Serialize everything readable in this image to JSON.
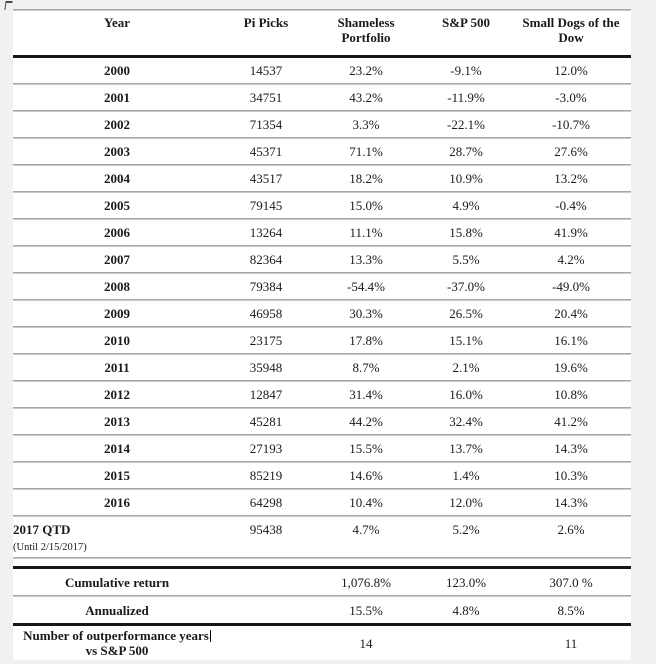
{
  "page": {
    "background": "#eff1f3",
    "table_background": "#ffffff"
  },
  "table": {
    "columns": [
      "Year",
      "Pi Picks",
      "Shameless Portfolio",
      "S&P 500",
      "Small Dogs of the Dow"
    ],
    "rows": [
      [
        "2000",
        "14537",
        "23.2%",
        "-9.1%",
        "12.0%"
      ],
      [
        "2001",
        "34751",
        "43.2%",
        "-11.9%",
        "-3.0%"
      ],
      [
        "2002",
        "71354",
        "3.3%",
        "-22.1%",
        "-10.7%"
      ],
      [
        "2003",
        "45371",
        "71.1%",
        "28.7%",
        "27.6%"
      ],
      [
        "2004",
        "43517",
        "18.2%",
        "10.9%",
        "13.2%"
      ],
      [
        "2005",
        "79145",
        "15.0%",
        "4.9%",
        "-0.4%"
      ],
      [
        "2006",
        "13264",
        "11.1%",
        "15.8%",
        "41.9%"
      ],
      [
        "2007",
        "82364",
        "13.3%",
        "5.5%",
        "4.2%"
      ],
      [
        "2008",
        "79384",
        "-54.4%",
        "-37.0%",
        "-49.0%"
      ],
      [
        "2009",
        "46958",
        "30.3%",
        "26.5%",
        "20.4%"
      ],
      [
        "2010",
        "23175",
        "17.8%",
        "15.1%",
        "16.1%"
      ],
      [
        "2011",
        "35948",
        "8.7%",
        "2.1%",
        "19.6%"
      ],
      [
        "2012",
        "12847",
        "31.4%",
        "16.0%",
        "10.8%"
      ],
      [
        "2013",
        "45281",
        "44.2%",
        "32.4%",
        "41.2%"
      ],
      [
        "2014",
        "27193",
        "15.5%",
        "13.7%",
        "14.3%"
      ],
      [
        "2015",
        "85219",
        "14.6%",
        "1.4%",
        "10.3%"
      ],
      [
        "2016",
        "64298",
        "10.4%",
        "12.0%",
        "14.3%"
      ]
    ],
    "qtd_row": {
      "year": "2017 QTD",
      "note": "(Until 2/15/2017)",
      "values": [
        "95438",
        "4.7%",
        "5.2%",
        "2.6%"
      ]
    },
    "summary": {
      "cumulative": {
        "label": "Cumulative return",
        "pi_picks": "",
        "shameless": "1,076.8%",
        "sp500": "123.0%",
        "small_dogs": "307.0 %"
      },
      "annualized": {
        "label": "Annualized",
        "pi_picks": "",
        "shameless": "15.5%",
        "sp500": "4.8%",
        "small_dogs": "8.5%"
      },
      "outperformance": {
        "label_line1": "Number of outperformance years",
        "label_line2": "vs S&P 500",
        "pi_picks": "",
        "shameless": "14",
        "sp500": "",
        "small_dogs": "11"
      }
    },
    "colors": {
      "thick_rule": "#161616",
      "row_separator": "#979797",
      "text": "#1a1a1a"
    }
  }
}
